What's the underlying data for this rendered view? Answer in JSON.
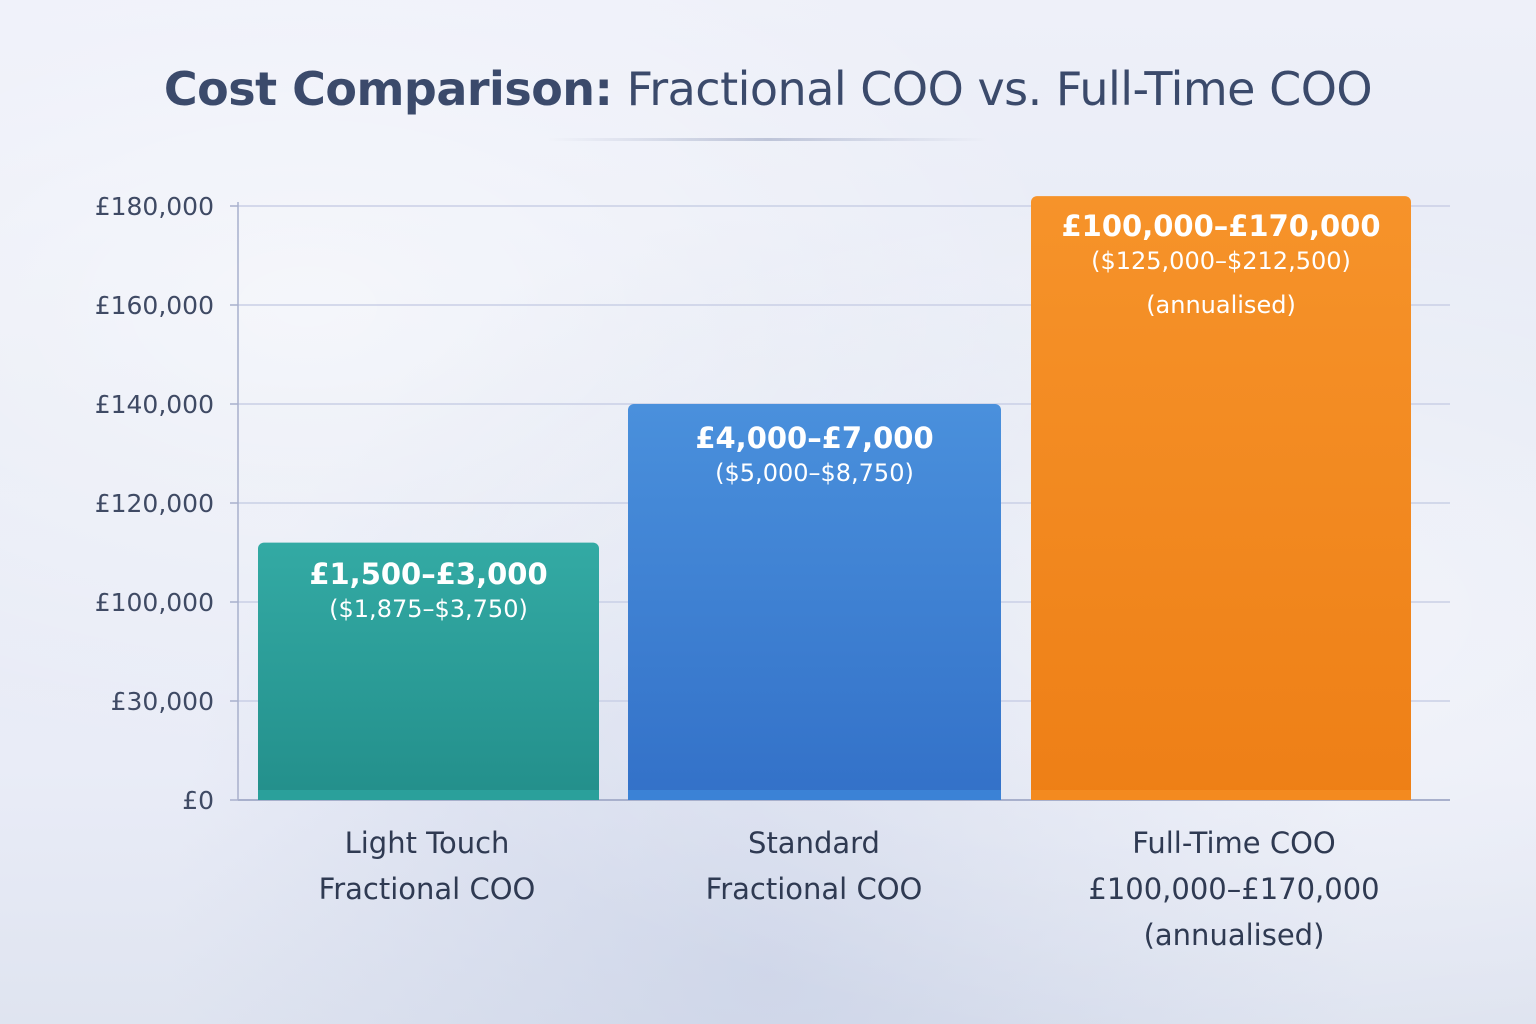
{
  "title": {
    "bold": "Cost Comparison:",
    "rest": " Fractional COO vs. Full-Time COO"
  },
  "chart_data": {
    "type": "bar",
    "title": "Cost Comparison: Fractional COO vs. Full-Time COO",
    "xlabel": "",
    "ylabel": "",
    "y_ticks": [
      "£0",
      "£30,000",
      "£100,000",
      "£120,000",
      "£140,000",
      "£160,000",
      "£180,000"
    ],
    "grid": true,
    "categories": [
      [
        "Light Touch",
        "Fractional COO"
      ],
      [
        "Standard",
        "Fractional COO"
      ],
      [
        "Full-Time COO",
        "£100,000–£170,000",
        "(annualised)"
      ]
    ],
    "bars": [
      {
        "label": [
          "£1,500–£3,000",
          "($1,875–$3,750)"
        ],
        "tick_level": 2.6,
        "color": "#2aa09b"
      },
      {
        "label": [
          "£4,000–£7,000",
          "($5,000–$8,750)"
        ],
        "tick_level": 4.0,
        "color": "#3b82d6"
      },
      {
        "label": [
          "£100,000–£170,000",
          "($125,000–$212,500)",
          "(annualised)"
        ],
        "tick_level": 6.1,
        "color": "#f38a1f"
      }
    ]
  }
}
